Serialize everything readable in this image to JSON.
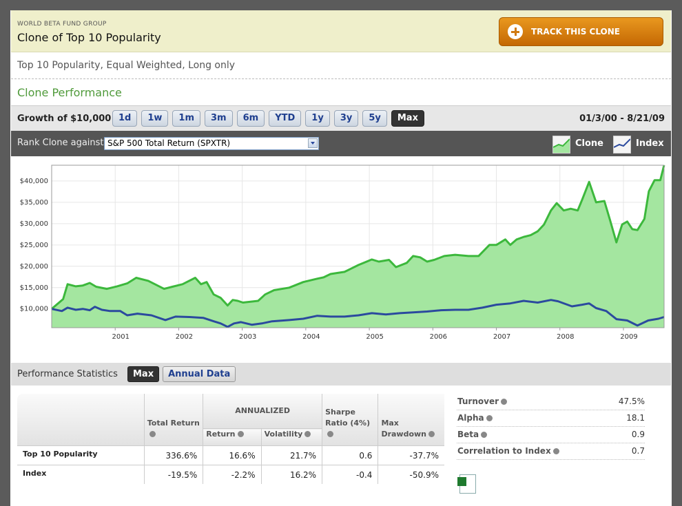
{
  "header": {
    "org": "WORLD BETA FUND GROUP",
    "title": "Clone of Top 10 Popularity",
    "button": "TRACK THIS CLONE"
  },
  "description": "Top 10 Popularity, Equal Weighted, Long only",
  "section_title": "Clone Performance",
  "toolbar": {
    "label": "Growth of $10,000",
    "ranges": [
      "1d",
      "1w",
      "1m",
      "3m",
      "6m",
      "YTD",
      "1y",
      "3y",
      "5y",
      "Max"
    ],
    "selected": "Max",
    "date_range": "01/3/00 - 8/21/09"
  },
  "rank": {
    "label": "Rank Clone against",
    "selected": "S&P 500 Total Return (SPXTR)"
  },
  "chart_data": {
    "type": "line",
    "grid": true,
    "legend": "top-right",
    "xlim": [
      2000,
      2009.64
    ],
    "xticks": [
      2001,
      2002,
      2003,
      2004,
      2005,
      2006,
      2007,
      2008,
      2009
    ],
    "ylim": [
      5600,
      43700
    ],
    "yticks": [
      {
        "value": 10000,
        "label": "$10,000"
      },
      {
        "value": 15000,
        "label": "$15,000"
      },
      {
        "value": 20000,
        "label": "$20,000"
      },
      {
        "value": 25000,
        "label": "$25,000"
      },
      {
        "value": 30000,
        "label": "$30,000"
      },
      {
        "value": 35000,
        "label": "$35,000"
      },
      {
        "value": 40000,
        "label": "$40,000"
      }
    ],
    "series": [
      {
        "name": "Clone",
        "color": "#3cb83c",
        "fill_color": "#a4e6a0",
        "area": true,
        "x": [
          2000.0,
          2000.18,
          2000.25,
          2000.38,
          2000.49,
          2000.6,
          2000.7,
          2000.87,
          2001.03,
          2001.19,
          2001.33,
          2001.52,
          2001.77,
          2001.9,
          2002.06,
          2002.26,
          2002.35,
          2002.44,
          2002.55,
          2002.66,
          2002.77,
          2002.85,
          2002.93,
          2003.01,
          2003.25,
          2003.36,
          2003.5,
          2003.74,
          2003.96,
          2004.18,
          2004.28,
          2004.39,
          2004.61,
          2004.83,
          2005.04,
          2005.15,
          2005.31,
          2005.42,
          2005.59,
          2005.69,
          2005.8,
          2005.91,
          2006.02,
          2006.18,
          2006.35,
          2006.56,
          2006.72,
          2006.89,
          2007.0,
          2007.14,
          2007.22,
          2007.32,
          2007.43,
          2007.54,
          2007.65,
          2007.75,
          2007.86,
          2007.95,
          2008.06,
          2008.17,
          2008.28,
          2008.35,
          2008.46,
          2008.57,
          2008.7,
          2008.79,
          2008.89,
          2008.98,
          2009.06,
          2009.14,
          2009.22,
          2009.33,
          2009.4,
          2009.49,
          2009.58,
          2009.64
        ],
        "values": [
          10000,
          12300,
          15800,
          15300,
          15500,
          16100,
          15200,
          14700,
          15300,
          16000,
          17300,
          16600,
          14700,
          15200,
          15800,
          17300,
          15800,
          16300,
          13400,
          12600,
          10800,
          12100,
          11900,
          11500,
          11900,
          13400,
          14400,
          15000,
          16300,
          17100,
          17400,
          18200,
          18700,
          20300,
          21600,
          21100,
          21500,
          19800,
          20800,
          22400,
          22100,
          21100,
          21500,
          22400,
          22700,
          22400,
          22400,
          25000,
          25000,
          26300,
          25000,
          26300,
          26900,
          27300,
          28200,
          29800,
          33100,
          34800,
          33100,
          33500,
          33100,
          35600,
          39800,
          35000,
          35300,
          30800,
          25600,
          29800,
          30500,
          28700,
          28500,
          31100,
          37600,
          40200,
          40200,
          43700
        ]
      },
      {
        "name": "Index",
        "color": "#2b4a9e",
        "area": false,
        "x": [
          2000.0,
          2000.16,
          2000.25,
          2000.38,
          2000.49,
          2000.6,
          2000.68,
          2000.79,
          2000.92,
          2001.08,
          2001.19,
          2001.35,
          2001.57,
          2001.79,
          2001.95,
          2002.17,
          2002.39,
          2002.55,
          2002.66,
          2002.77,
          2002.87,
          2002.98,
          2003.15,
          2003.31,
          2003.47,
          2003.74,
          2003.96,
          2004.18,
          2004.39,
          2004.61,
          2004.83,
          2005.04,
          2005.26,
          2005.48,
          2005.69,
          2005.91,
          2006.13,
          2006.35,
          2006.56,
          2006.78,
          2007.0,
          2007.22,
          2007.43,
          2007.65,
          2007.86,
          2007.97,
          2008.19,
          2008.35,
          2008.46,
          2008.57,
          2008.73,
          2008.89,
          2009.06,
          2009.22,
          2009.39,
          2009.55,
          2009.64
        ],
        "values": [
          10000,
          9500,
          10300,
          9800,
          10000,
          9700,
          10500,
          9800,
          9500,
          9500,
          8500,
          8900,
          8500,
          7400,
          8200,
          8100,
          7900,
          7100,
          6600,
          5800,
          6600,
          6900,
          6300,
          6600,
          7100,
          7400,
          7700,
          8400,
          8200,
          8200,
          8500,
          9000,
          8700,
          9000,
          9200,
          9400,
          9700,
          9800,
          9800,
          10300,
          11000,
          11300,
          11900,
          11500,
          12100,
          11800,
          10600,
          11000,
          11300,
          10200,
          9500,
          7600,
          7300,
          6100,
          7300,
          7700,
          8100
        ]
      }
    ]
  },
  "stats": {
    "title": "Performance Statistics",
    "tabs": [
      "Max",
      "Annual Data"
    ],
    "selected": "Max",
    "table": {
      "group_header": "ANNUALIZED",
      "columns": [
        "Total Return",
        "Return",
        "Volatility",
        "Sharpe Ratio (4%)",
        "Max Drawdown"
      ],
      "rows": [
        {
          "name": "Top 10 Popularity",
          "values": [
            "336.6%",
            "16.6%",
            "21.7%",
            "0.6",
            "-37.7%"
          ]
        },
        {
          "name": "Index",
          "values": [
            "-19.5%",
            "-2.2%",
            "16.2%",
            "-0.4",
            "-50.9%"
          ]
        }
      ]
    },
    "metrics": [
      {
        "label": "Turnover",
        "value": "47.5%"
      },
      {
        "label": "Alpha",
        "value": "18.1"
      },
      {
        "label": "Beta",
        "value": "0.9"
      },
      {
        "label": "Correlation to Index",
        "value": "0.7"
      }
    ],
    "download": "Download Excel File"
  }
}
